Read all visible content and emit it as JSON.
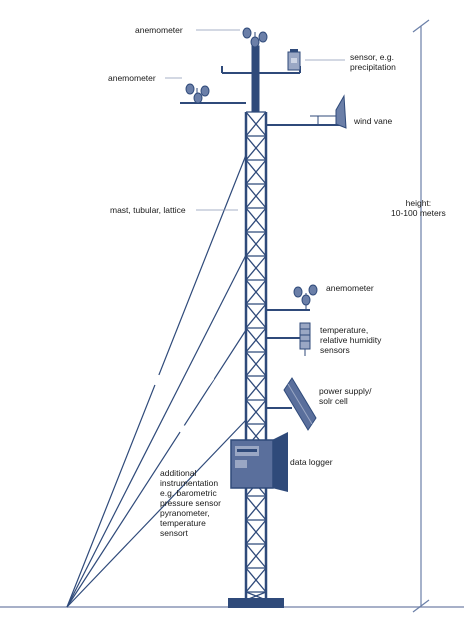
{
  "labels": {
    "anemometer_top": "anemometer",
    "anemometer_left": "anemometer",
    "sensor_precip": "sensor, e.g.\nprecipitation",
    "wind_vane": "wind vane",
    "height": "height:\n10-100 meters",
    "mast": "mast, tubular, lattice",
    "anemometer_mid": "anemometer",
    "temp_humidity": "temperature,\nrelative humidity\nsensors",
    "power_supply": "power supply/\nsolr cell",
    "data_logger": "data logger",
    "additional": "additional\ninstrumentation\ne.g. barometric\npressure sensor\npyranometer,\ntemperature\nsensort"
  },
  "colors": {
    "structure": "#2f4a7a",
    "structure_light": "#6b7fa8",
    "ground": "#8a96b5",
    "text": "#1a1a1a"
  },
  "icons": [
    "anemometer-icon",
    "wind-vane-icon",
    "precipitation-sensor-icon",
    "humidity-sensor-icon",
    "solar-panel-icon",
    "data-logger-icon"
  ]
}
